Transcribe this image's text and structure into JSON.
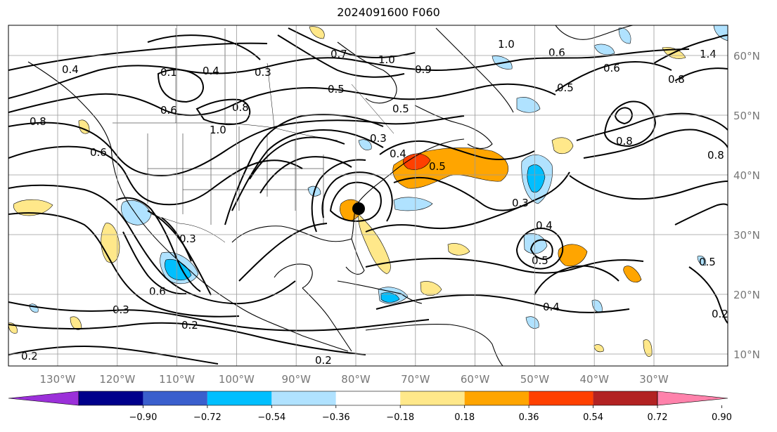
{
  "title": "2024091600 F060",
  "map": {
    "lon_ticks": [
      {
        "label": "130°W",
        "value": -130
      },
      {
        "label": "120°W",
        "value": -120
      },
      {
        "label": "110°W",
        "value": -110
      },
      {
        "label": "100°W",
        "value": -100
      },
      {
        "label": "90°W",
        "value": -90
      },
      {
        "label": "80°W",
        "value": -80
      },
      {
        "label": "70°W",
        "value": -70
      },
      {
        "label": "60°W",
        "value": -60
      },
      {
        "label": "50°W",
        "value": -50
      },
      {
        "label": "40°W",
        "value": -40
      },
      {
        "label": "30°W",
        "value": -30
      }
    ],
    "lat_ticks": [
      {
        "label": "60°N",
        "value": 60
      },
      {
        "label": "50°N",
        "value": 50
      },
      {
        "label": "40°N",
        "value": 40
      },
      {
        "label": "30°N",
        "value": 30
      },
      {
        "label": "20°N",
        "value": 20
      },
      {
        "label": "10°N",
        "value": 10
      }
    ],
    "contour_labels": [
      "0.4",
      "0.4",
      "0.3",
      "0.1",
      "0.7",
      "1.0",
      "0.9",
      "1.0",
      "0.8",
      "0.6",
      "0.6",
      "0.5",
      "0.5",
      "0.6",
      "0.8",
      "0.5",
      "1.0",
      "0.6",
      "0.3",
      "0.4",
      "0.5",
      "0.3",
      "0.4",
      "0.5",
      "0.4",
      "0.3",
      "0.2",
      "0.2",
      "0.2",
      "0.8",
      "0.3",
      "0.6",
      "0.8",
      "0.5",
      "0.2",
      "1.4",
      "0.8"
    ],
    "storm_marker": "black-dot"
  },
  "colorbar": {
    "colors": [
      "#9b30d9",
      "#00008b",
      "#3a5fcd",
      "#00bfff",
      "#b0e2ff",
      "#ffffff",
      "#ffe88a",
      "#ffa500",
      "#ff4000",
      "#b22222",
      "#ff82ab"
    ],
    "tick_labels": [
      "−0.90",
      "−0.72",
      "−0.54",
      "−0.36",
      "−0.18",
      "0.18",
      "0.36",
      "0.54",
      "0.72",
      "0.90"
    ]
  }
}
